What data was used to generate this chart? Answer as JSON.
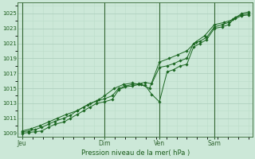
{
  "xlabel": "Pression niveau de la mer( hPa )",
  "bg_color": "#cce8d8",
  "plot_bg_color": "#cce8d8",
  "grid_major_color": "#aaccbb",
  "grid_minor_color": "#bbddc8",
  "line_color": "#1a6620",
  "marker_color": "#1a6620",
  "ylim": [
    1008.5,
    1026.5
  ],
  "yticks": [
    1009,
    1011,
    1013,
    1015,
    1017,
    1019,
    1021,
    1023,
    1025
  ],
  "day_labels": [
    "Jeu",
    "Dim",
    "Ven",
    "Sam"
  ],
  "day_positions": [
    0.0,
    0.375,
    0.625,
    0.875
  ],
  "xlim": [
    -0.02,
    1.05
  ],
  "series1_x": [
    0.0,
    0.03,
    0.06,
    0.09,
    0.12,
    0.15,
    0.19,
    0.22,
    0.25,
    0.28,
    0.31,
    0.34,
    0.375,
    0.41,
    0.44,
    0.47,
    0.5,
    0.53,
    0.56,
    0.59,
    0.625,
    0.66,
    0.69,
    0.72,
    0.75,
    0.78,
    0.81,
    0.84,
    0.875,
    0.91,
    0.94,
    0.97,
    1.0,
    1.03
  ],
  "series1_y": [
    1009.0,
    1009.1,
    1009.2,
    1009.3,
    1009.8,
    1010.2,
    1010.5,
    1011.0,
    1011.5,
    1012.0,
    1012.5,
    1013.0,
    1013.2,
    1013.5,
    1014.8,
    1015.2,
    1015.3,
    1015.5,
    1015.4,
    1014.2,
    1013.2,
    1017.2,
    1017.5,
    1018.0,
    1018.2,
    1020.5,
    1021.0,
    1021.5,
    1023.0,
    1023.2,
    1023.5,
    1024.5,
    1024.8,
    1025.0
  ],
  "series2_x": [
    0.0,
    0.03,
    0.06,
    0.09,
    0.12,
    0.15,
    0.19,
    0.22,
    0.25,
    0.28,
    0.31,
    0.34,
    0.375,
    0.41,
    0.44,
    0.47,
    0.5,
    0.53,
    0.56,
    0.59,
    0.625,
    0.66,
    0.69,
    0.72,
    0.75,
    0.78,
    0.81,
    0.84,
    0.875,
    0.91,
    0.94,
    0.97,
    1.0,
    1.03
  ],
  "series2_y": [
    1009.2,
    1009.3,
    1009.5,
    1009.8,
    1010.2,
    1010.6,
    1011.0,
    1011.4,
    1012.0,
    1012.5,
    1013.0,
    1013.3,
    1013.6,
    1014.0,
    1015.0,
    1015.3,
    1015.5,
    1015.6,
    1015.8,
    1015.6,
    1017.8,
    1018.0,
    1018.3,
    1018.7,
    1019.0,
    1021.0,
    1021.3,
    1021.8,
    1023.2,
    1023.5,
    1023.8,
    1024.3,
    1024.7,
    1024.8
  ],
  "series3_x": [
    0.0,
    0.04,
    0.08,
    0.12,
    0.16,
    0.2,
    0.25,
    0.3,
    0.35,
    0.375,
    0.42,
    0.46,
    0.5,
    0.54,
    0.58,
    0.625,
    0.67,
    0.71,
    0.75,
    0.79,
    0.83,
    0.875,
    0.92,
    0.96,
    1.0,
    1.03
  ],
  "series3_y": [
    1009.3,
    1009.6,
    1010.0,
    1010.5,
    1011.0,
    1011.5,
    1012.0,
    1012.8,
    1013.5,
    1014.0,
    1015.0,
    1015.5,
    1015.7,
    1015.5,
    1015.0,
    1018.5,
    1019.0,
    1019.5,
    1020.0,
    1021.2,
    1022.0,
    1023.5,
    1023.8,
    1024.2,
    1025.0,
    1025.2
  ]
}
